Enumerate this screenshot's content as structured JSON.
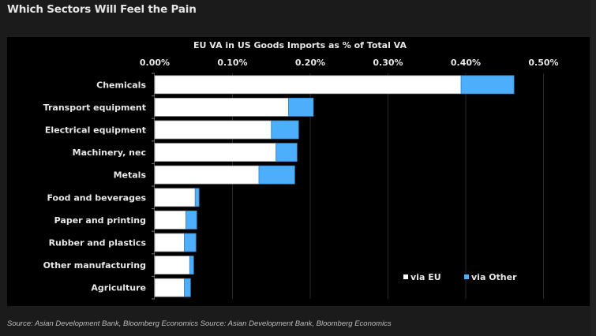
{
  "header": {
    "title": "Which Sectors Will Feel the Pain"
  },
  "footer": {
    "source": "Source: Asian Development Bank, Bloomberg Economics  Source: Asian Development Bank, Bloomberg Economics"
  },
  "colors": {
    "via_eu": "#ffffff",
    "via_other": "#4daefc",
    "background": "#1b1b1b",
    "plot_bg": "#000000"
  },
  "chart_data": {
    "type": "bar",
    "orientation": "horizontal",
    "stacked": true,
    "title": "EU VA in US Goods Imports as % of Total VA",
    "xlabel": "",
    "ylabel": "",
    "xlim": [
      0,
      0.5
    ],
    "x_ticks": [
      0,
      0.1,
      0.2,
      0.3,
      0.4,
      0.5
    ],
    "x_tick_labels": [
      "0.00%",
      "0.10%",
      "0.20%",
      "0.30%",
      "0.40%",
      "0.50%"
    ],
    "x_axis_position": "top",
    "grid": true,
    "legend_position": "bottom-right",
    "categories": [
      "Chemicals",
      "Transport equipment",
      "Electrical equipment",
      "Machinery, nec",
      "Metals",
      "Food and beverages",
      "Paper and printing",
      "Rubber and plastics",
      "Other manufacturing",
      "Agriculture"
    ],
    "series": [
      {
        "name": "via EU",
        "color": "#ffffff",
        "values": [
          0.394,
          0.172,
          0.15,
          0.156,
          0.134,
          0.052,
          0.04,
          0.038,
          0.045,
          0.038
        ]
      },
      {
        "name": "via Other",
        "color": "#4daefc",
        "values": [
          0.068,
          0.032,
          0.035,
          0.027,
          0.046,
          0.005,
          0.014,
          0.015,
          0.005,
          0.008
        ]
      }
    ]
  }
}
